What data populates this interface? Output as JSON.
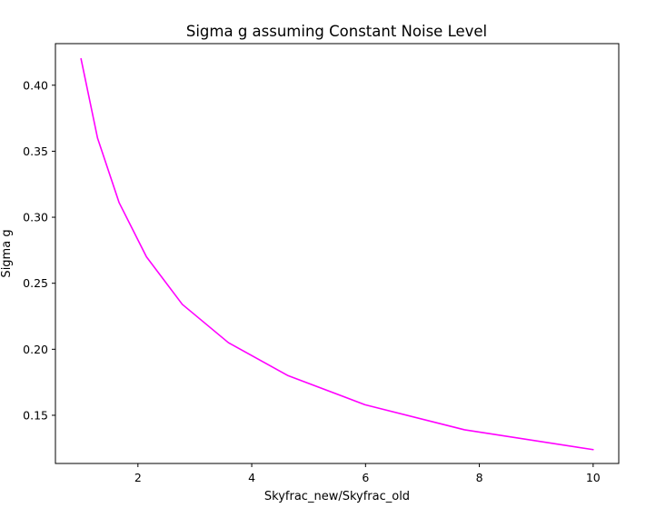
{
  "chart_data": {
    "type": "line",
    "title": "Sigma g assuming Constant Noise Level",
    "xlabel": "Skyfrac_new/Skyfrac_old",
    "ylabel": "Sigma g",
    "xlim": [
      0.55,
      10.45
    ],
    "ylim": [
      0.1135,
      0.4315
    ],
    "xticks": [
      2,
      4,
      6,
      8,
      10
    ],
    "xtick_labels": [
      "2",
      "4",
      "6",
      "8",
      "10"
    ],
    "yticks": [
      0.15,
      0.2,
      0.25,
      0.3,
      0.35,
      0.4
    ],
    "ytick_labels": [
      "0.15",
      "0.20",
      "0.25",
      "0.30",
      "0.35",
      "0.40"
    ],
    "grid": false,
    "legend": "none",
    "series": [
      {
        "color": "#ff00ff",
        "x": [
          1.0,
          1.29,
          1.67,
          2.15,
          2.78,
          3.59,
          4.64,
          5.99,
          7.74,
          10.0
        ],
        "y": [
          0.42,
          0.36,
          0.311,
          0.27,
          0.234,
          0.205,
          0.18,
          0.158,
          0.139,
          0.124
        ]
      }
    ]
  }
}
